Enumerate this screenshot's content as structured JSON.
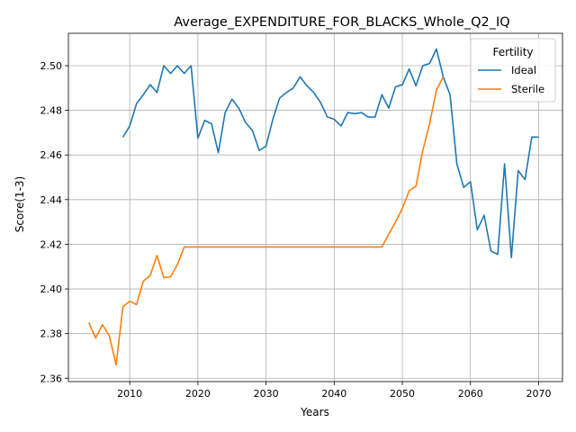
{
  "chart_data": {
    "type": "line",
    "title": "Average_EXPENDITURE_FOR_BLACKS_Whole_Q2_IQ",
    "xlabel": "Years",
    "ylabel": "Score(1-3)",
    "xlim": [
      2001,
      2073.5
    ],
    "ylim": [
      2.3585,
      2.5145
    ],
    "x_ticks": [
      2010,
      2020,
      2030,
      2040,
      2050,
      2060,
      2070
    ],
    "y_ticks": [
      2.36,
      2.38,
      2.4,
      2.42,
      2.44,
      2.46,
      2.48,
      2.5
    ],
    "x_tick_labels": [
      "2010",
      "2020",
      "2030",
      "2040",
      "2050",
      "2060",
      "2070"
    ],
    "y_tick_labels": [
      "2.36",
      "2.38",
      "2.40",
      "2.42",
      "2.44",
      "2.46",
      "2.48",
      "2.50"
    ],
    "grid": true,
    "legend": {
      "title": "Fertility",
      "placement": "top-right"
    },
    "series": [
      {
        "name": "Ideal",
        "color": "#1f77b4",
        "x": [
          2009,
          2010,
          2011,
          2012,
          2013,
          2014,
          2015,
          2016,
          2017,
          2018,
          2019,
          2020,
          2021,
          2022,
          2023,
          2024,
          2025,
          2026,
          2027,
          2028,
          2029,
          2030,
          2031,
          2032,
          2033,
          2034,
          2035,
          2036,
          2037,
          2038,
          2039,
          2040,
          2041,
          2042,
          2043,
          2044,
          2045,
          2046,
          2047,
          2048,
          2049,
          2050,
          2051,
          2052,
          2053,
          2054,
          2055,
          2056,
          2057,
          2058,
          2059,
          2060,
          2061,
          2062,
          2063,
          2064,
          2065,
          2066,
          2067,
          2068,
          2069,
          2070
        ],
        "values": [
          2.468,
          2.473,
          2.483,
          2.487,
          2.4915,
          2.488,
          2.5,
          2.4965,
          2.5,
          2.4965,
          2.5,
          2.4675,
          2.4755,
          2.474,
          2.461,
          2.479,
          2.485,
          2.481,
          2.4745,
          2.471,
          2.462,
          2.464,
          2.476,
          2.4855,
          2.488,
          2.49,
          2.495,
          2.491,
          2.488,
          2.4835,
          2.477,
          2.476,
          2.473,
          2.479,
          2.4785,
          2.479,
          2.477,
          2.477,
          2.487,
          2.481,
          2.4905,
          2.4915,
          2.4985,
          2.491,
          2.5,
          2.501,
          2.5075,
          2.495,
          2.487,
          2.456,
          2.4455,
          2.448,
          2.4265,
          2.433,
          2.417,
          2.4155,
          2.456,
          2.414,
          2.453,
          2.449,
          2.468,
          2.468
        ]
      },
      {
        "name": "Sterile",
        "color": "#ff7f0e",
        "x": [
          2004,
          2005,
          2006,
          2007,
          2008,
          2009,
          2010,
          2011,
          2012,
          2013,
          2014,
          2015,
          2016,
          2017,
          2018,
          2019,
          2020,
          2021,
          2022,
          2023,
          2024,
          2025,
          2026,
          2027,
          2028,
          2029,
          2030,
          2031,
          2032,
          2033,
          2034,
          2035,
          2036,
          2037,
          2038,
          2039,
          2040,
          2041,
          2042,
          2043,
          2044,
          2045,
          2046,
          2047,
          2048,
          2049,
          2050,
          2051,
          2052,
          2053,
          2054,
          2055,
          2056
        ],
        "values": [
          2.385,
          2.378,
          2.384,
          2.379,
          2.366,
          2.392,
          2.3945,
          2.393,
          2.4035,
          2.406,
          2.415,
          2.405,
          2.4055,
          2.411,
          2.4188,
          2.4188,
          2.4188,
          2.4188,
          2.4188,
          2.4188,
          2.4188,
          2.4188,
          2.4188,
          2.4188,
          2.4188,
          2.4188,
          2.4188,
          2.4188,
          2.4188,
          2.4188,
          2.4188,
          2.4188,
          2.4188,
          2.4188,
          2.4188,
          2.4188,
          2.4188,
          2.4188,
          2.4188,
          2.4188,
          2.4188,
          2.4188,
          2.4188,
          2.4188,
          2.4245,
          2.43,
          2.436,
          2.444,
          2.446,
          2.462,
          2.474,
          2.489,
          2.495
        ]
      }
    ]
  }
}
